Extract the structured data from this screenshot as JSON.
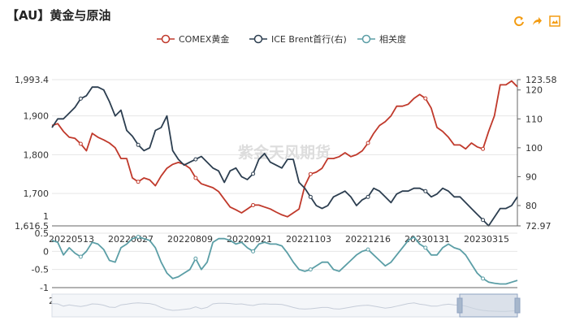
{
  "title": "【AU】黄金与原油",
  "toolbar": {
    "refresh_icon": "refresh-icon",
    "share_icon": "share-icon",
    "download_icon": "download-icon",
    "accent": "#f39c12"
  },
  "watermark": "紫金天风期货",
  "colors": {
    "gold": "#c0392b",
    "brent": "#2c3e50",
    "corr": "#5b9ea6",
    "grid": "#e6e6e6",
    "axis": "#666666",
    "zoom_fill": "#c9d3e0"
  },
  "chart_data": [
    {
      "type": "line",
      "legend_position": "top-center",
      "legend": [
        "COMEX黄金",
        "ICE Brent首行(右)",
        "相关度"
      ],
      "x_ticks": [
        "20220513",
        "20220627",
        "20220809",
        "20220921",
        "20221103",
        "20221216",
        "20230131",
        "20230315"
      ],
      "y_left": {
        "ticks": [
          "1,993.4",
          "1,900",
          "1,800",
          "1,700",
          "1,616.5"
        ],
        "ylim": [
          1616.5,
          1993.4
        ]
      },
      "y_right": {
        "ticks": [
          "123.58",
          "120",
          "110",
          "100",
          "90",
          "80",
          "72.97"
        ],
        "ylim": [
          72.97,
          123.58
        ]
      },
      "series": [
        {
          "name": "COMEX黄金",
          "axis": "left",
          "values": [
            1875,
            1880,
            1860,
            1845,
            1842,
            1828,
            1810,
            1855,
            1845,
            1838,
            1830,
            1818,
            1790,
            1790,
            1740,
            1730,
            1740,
            1735,
            1720,
            1745,
            1765,
            1775,
            1780,
            1775,
            1765,
            1740,
            1725,
            1720,
            1715,
            1705,
            1685,
            1665,
            1658,
            1650,
            1660,
            1670,
            1670,
            1665,
            1660,
            1652,
            1645,
            1640,
            1650,
            1660,
            1720,
            1750,
            1755,
            1765,
            1790,
            1790,
            1795,
            1805,
            1795,
            1800,
            1810,
            1830,
            1855,
            1875,
            1885,
            1900,
            1925,
            1925,
            1930,
            1945,
            1955,
            1945,
            1920,
            1870,
            1860,
            1845,
            1825,
            1825,
            1815,
            1830,
            1820,
            1815,
            1860,
            1900,
            1980,
            1980,
            1990,
            1975
          ]
        },
        {
          "name": "ICE Brent首行(右)",
          "axis": "left_scaled_right",
          "values": [
            107,
            110,
            110,
            112,
            114,
            117,
            118,
            121,
            121,
            120,
            116,
            111,
            113,
            106,
            104,
            101,
            99,
            100,
            106,
            107,
            111,
            99,
            96,
            94,
            95,
            96,
            97,
            95,
            93,
            92,
            88,
            92,
            93,
            90,
            89,
            91,
            96,
            98,
            95,
            94,
            93,
            96,
            96,
            88,
            86,
            83,
            80,
            79,
            80,
            83,
            84,
            85,
            83,
            80,
            82,
            83,
            86,
            85,
            83,
            81,
            84,
            85,
            85,
            86,
            86,
            85,
            83,
            84,
            86,
            85,
            83,
            83,
            81,
            79,
            77,
            75,
            73,
            76,
            79,
            79,
            80,
            83
          ]
        },
        {
          "name": "相关度",
          "axis": "bottom",
          "values": [
            0.3,
            0.25,
            -0.1,
            0.1,
            -0.05,
            -0.15,
            0.0,
            0.25,
            0.2,
            0.05,
            -0.25,
            -0.3,
            0.1,
            0.2,
            0.35,
            0.4,
            0.35,
            0.3,
            0.1,
            -0.3,
            -0.6,
            -0.75,
            -0.7,
            -0.6,
            -0.5,
            -0.2,
            -0.5,
            -0.3,
            0.25,
            0.35,
            0.35,
            0.3,
            0.2,
            0.25,
            0.1,
            0.0,
            0.2,
            0.25,
            0.2,
            0.2,
            0.15,
            -0.05,
            -0.3,
            -0.5,
            -0.55,
            -0.5,
            -0.4,
            -0.3,
            -0.3,
            -0.5,
            -0.55,
            -0.4,
            -0.25,
            -0.1,
            0.0,
            0.05,
            -0.1,
            -0.25,
            -0.4,
            -0.3,
            -0.1,
            0.1,
            0.3,
            0.4,
            0.2,
            0.1,
            -0.1,
            -0.1,
            0.1,
            0.2,
            0.1,
            0.05,
            -0.1,
            -0.35,
            -0.6,
            -0.75,
            -0.85,
            -0.88,
            -0.9,
            -0.9,
            -0.85,
            -0.8
          ]
        }
      ]
    },
    {
      "type": "line",
      "y_ticks": [
        "0.5",
        "0",
        "-0.5",
        "-1"
      ],
      "ylim": [
        -1,
        0.5
      ],
      "x_ticks": [
        "20220513",
        "20220627",
        "20220809",
        "20220921",
        "20221103",
        "20221216",
        "20230131",
        "20230315"
      ]
    }
  ]
}
